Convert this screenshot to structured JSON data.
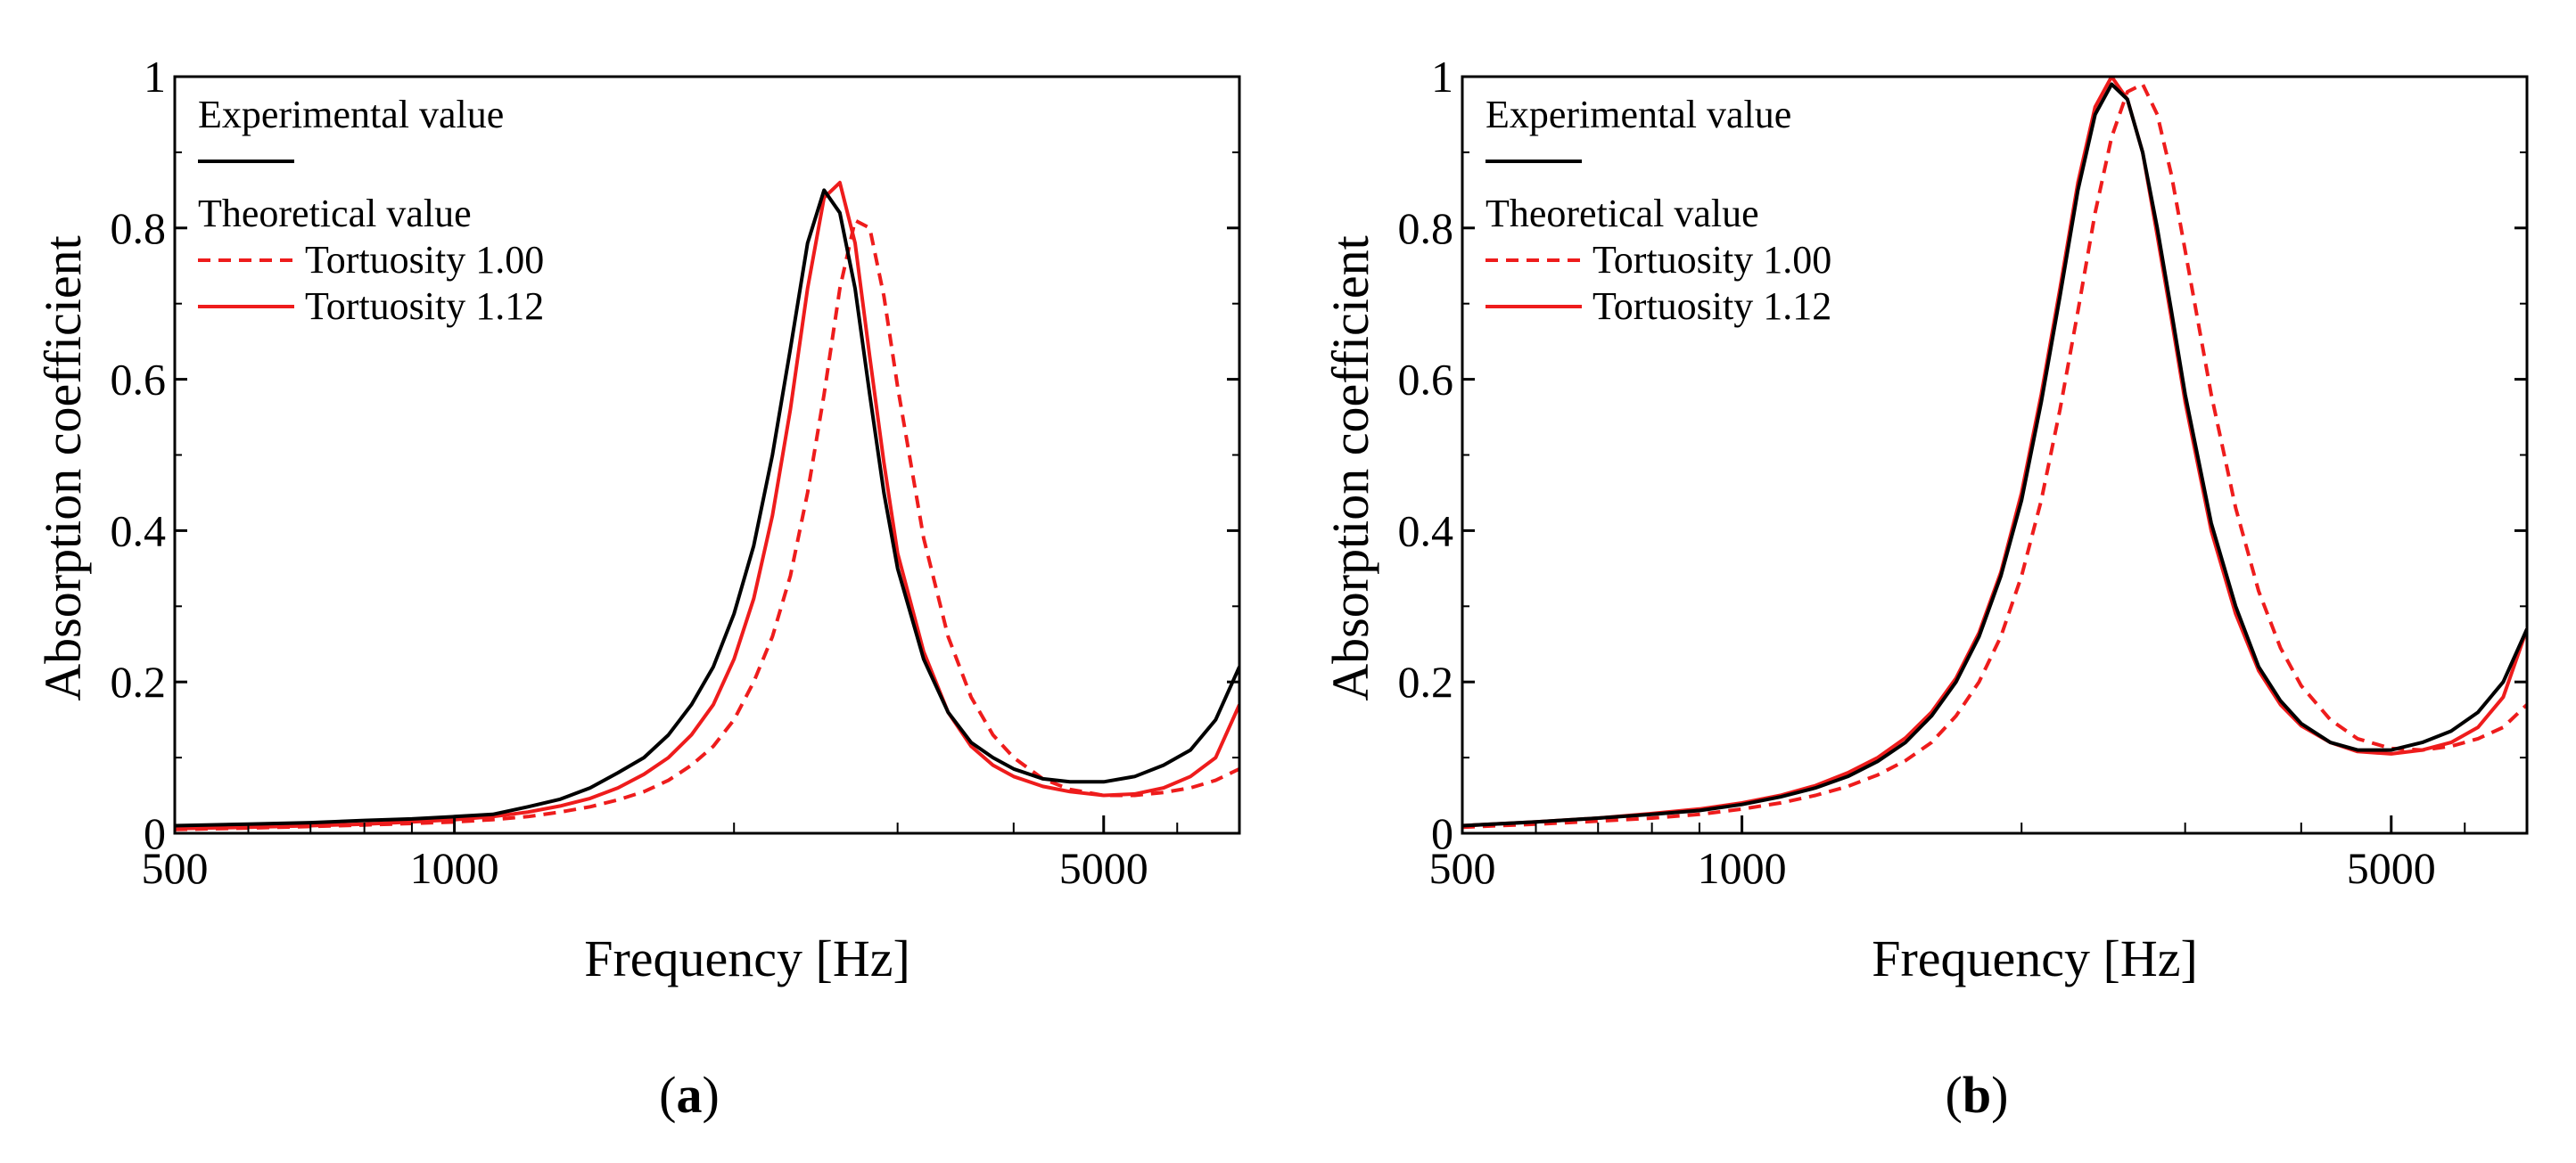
{
  "colors": {
    "experimental": "#000000",
    "theoretical": "#ee1c1c"
  },
  "chart_data": [
    {
      "type": "line",
      "panel_label": "a",
      "xlabel": "Frequency [Hz]",
      "ylabel": "Absorption coefficient",
      "xscale": "log",
      "xlim": [
        500,
        7000
      ],
      "ylim": [
        0,
        1
      ],
      "xticks": [
        500,
        1000,
        5000
      ],
      "xtick_labels": [
        "500",
        "1000",
        "5000"
      ],
      "yticks": [
        0,
        0.2,
        0.4,
        0.6,
        0.8,
        1
      ],
      "ytick_labels": [
        "0",
        "0.2",
        "0.4",
        "0.6",
        "0.8",
        "1"
      ],
      "legend": {
        "placement": "top-left",
        "group1": "Experimental value",
        "group2": "Theoretical value",
        "entry_dashed": "Tortuosity 1.00",
        "entry_solid": "Tortuosity 1.12"
      },
      "series": [
        {
          "name": "Experimental value",
          "style": "solid",
          "color": "#000000",
          "x": [
            500,
            600,
            700,
            800,
            900,
            1000,
            1100,
            1200,
            1300,
            1400,
            1500,
            1600,
            1700,
            1800,
            1900,
            2000,
            2100,
            2200,
            2300,
            2400,
            2500,
            2600,
            2700,
            2800,
            2900,
            3000,
            3200,
            3400,
            3600,
            3800,
            4000,
            4300,
            4600,
            5000,
            5400,
            5800,
            6200,
            6600,
            7000
          ],
          "y": [
            0.01,
            0.012,
            0.014,
            0.017,
            0.019,
            0.022,
            0.025,
            0.035,
            0.045,
            0.06,
            0.08,
            0.1,
            0.13,
            0.17,
            0.22,
            0.29,
            0.38,
            0.5,
            0.64,
            0.78,
            0.85,
            0.82,
            0.72,
            0.58,
            0.45,
            0.35,
            0.23,
            0.16,
            0.12,
            0.1,
            0.085,
            0.072,
            0.068,
            0.068,
            0.075,
            0.09,
            0.11,
            0.15,
            0.22
          ]
        },
        {
          "name": "Tortuosity 1.00",
          "style": "dashed",
          "color": "#ee1c1c",
          "x": [
            500,
            600,
            700,
            800,
            900,
            1000,
            1100,
            1200,
            1300,
            1400,
            1500,
            1600,
            1700,
            1800,
            1900,
            2000,
            2100,
            2200,
            2300,
            2400,
            2500,
            2600,
            2700,
            2800,
            2900,
            3000,
            3200,
            3400,
            3600,
            3800,
            4000,
            4300,
            4600,
            5000,
            5400,
            5800,
            6200,
            6600,
            7000
          ],
          "y": [
            0.005,
            0.007,
            0.009,
            0.011,
            0.013,
            0.015,
            0.018,
            0.022,
            0.028,
            0.035,
            0.044,
            0.055,
            0.07,
            0.09,
            0.115,
            0.15,
            0.2,
            0.26,
            0.34,
            0.45,
            0.58,
            0.72,
            0.81,
            0.8,
            0.71,
            0.59,
            0.39,
            0.26,
            0.18,
            0.13,
            0.1,
            0.072,
            0.058,
            0.05,
            0.05,
            0.054,
            0.06,
            0.07,
            0.085
          ]
        },
        {
          "name": "Tortuosity 1.12",
          "style": "solid",
          "color": "#ee1c1c",
          "x": [
            500,
            600,
            700,
            800,
            900,
            1000,
            1100,
            1200,
            1300,
            1400,
            1500,
            1600,
            1700,
            1800,
            1900,
            2000,
            2100,
            2200,
            2300,
            2400,
            2500,
            2600,
            2700,
            2800,
            2900,
            3000,
            3200,
            3400,
            3600,
            3800,
            4000,
            4300,
            4600,
            5000,
            5400,
            5800,
            6200,
            6600,
            7000
          ],
          "y": [
            0.006,
            0.008,
            0.01,
            0.012,
            0.015,
            0.018,
            0.022,
            0.028,
            0.036,
            0.046,
            0.06,
            0.078,
            0.1,
            0.13,
            0.17,
            0.23,
            0.31,
            0.42,
            0.56,
            0.72,
            0.84,
            0.86,
            0.78,
            0.63,
            0.49,
            0.37,
            0.24,
            0.16,
            0.115,
            0.09,
            0.075,
            0.062,
            0.055,
            0.05,
            0.052,
            0.06,
            0.075,
            0.1,
            0.17
          ]
        }
      ]
    },
    {
      "type": "line",
      "panel_label": "b",
      "xlabel": "Frequency [Hz]",
      "ylabel": "Absorption coefficient",
      "xscale": "log",
      "xlim": [
        500,
        7000
      ],
      "ylim": [
        0,
        1
      ],
      "xticks": [
        500,
        1000,
        5000
      ],
      "xtick_labels": [
        "500",
        "1000",
        "5000"
      ],
      "yticks": [
        0,
        0.2,
        0.4,
        0.6,
        0.8,
        1
      ],
      "ytick_labels": [
        "0",
        "0.2",
        "0.4",
        "0.6",
        "0.8",
        "1"
      ],
      "legend": {
        "placement": "top-left",
        "group1": "Experimental value",
        "group2": "Theoretical value",
        "entry_dashed": "Tortuosity 1.00",
        "entry_solid": "Tortuosity 1.12"
      },
      "series": [
        {
          "name": "Experimental value",
          "style": "solid",
          "color": "#000000",
          "x": [
            500,
            600,
            700,
            800,
            900,
            1000,
            1100,
            1200,
            1300,
            1400,
            1500,
            1600,
            1700,
            1800,
            1900,
            2000,
            2100,
            2200,
            2300,
            2400,
            2500,
            2600,
            2700,
            2800,
            2900,
            3000,
            3200,
            3400,
            3600,
            3800,
            4000,
            4300,
            4600,
            5000,
            5400,
            5800,
            6200,
            6600,
            7000
          ],
          "y": [
            0.01,
            0.015,
            0.02,
            0.025,
            0.03,
            0.038,
            0.048,
            0.06,
            0.075,
            0.095,
            0.12,
            0.155,
            0.2,
            0.26,
            0.34,
            0.44,
            0.57,
            0.71,
            0.85,
            0.95,
            0.99,
            0.97,
            0.9,
            0.8,
            0.69,
            0.58,
            0.41,
            0.3,
            0.22,
            0.175,
            0.145,
            0.12,
            0.11,
            0.11,
            0.12,
            0.135,
            0.16,
            0.2,
            0.27
          ]
        },
        {
          "name": "Tortuosity 1.00",
          "style": "dashed",
          "color": "#ee1c1c",
          "x": [
            500,
            600,
            700,
            800,
            900,
            1000,
            1100,
            1200,
            1300,
            1400,
            1500,
            1600,
            1700,
            1800,
            1900,
            2000,
            2100,
            2200,
            2300,
            2400,
            2500,
            2600,
            2700,
            2800,
            2900,
            3000,
            3200,
            3400,
            3600,
            3800,
            4000,
            4300,
            4600,
            5000,
            5400,
            5800,
            6200,
            6600,
            7000
          ],
          "y": [
            0.008,
            0.012,
            0.016,
            0.02,
            0.025,
            0.032,
            0.04,
            0.05,
            0.062,
            0.077,
            0.096,
            0.12,
            0.155,
            0.2,
            0.26,
            0.34,
            0.44,
            0.56,
            0.69,
            0.82,
            0.92,
            0.98,
            0.99,
            0.95,
            0.87,
            0.77,
            0.58,
            0.43,
            0.32,
            0.245,
            0.195,
            0.15,
            0.125,
            0.112,
            0.11,
            0.115,
            0.125,
            0.14,
            0.17
          ]
        },
        {
          "name": "Tortuosity 1.12",
          "style": "solid",
          "color": "#ee1c1c",
          "x": [
            500,
            600,
            700,
            800,
            900,
            1000,
            1100,
            1200,
            1300,
            1400,
            1500,
            1600,
            1700,
            1800,
            1900,
            2000,
            2100,
            2200,
            2300,
            2400,
            2500,
            2600,
            2700,
            2800,
            2900,
            3000,
            3200,
            3400,
            3600,
            3800,
            4000,
            4300,
            4600,
            5000,
            5400,
            5800,
            6200,
            6600,
            7000
          ],
          "y": [
            0.01,
            0.015,
            0.02,
            0.026,
            0.032,
            0.04,
            0.05,
            0.063,
            0.08,
            0.1,
            0.126,
            0.16,
            0.205,
            0.265,
            0.345,
            0.45,
            0.58,
            0.72,
            0.86,
            0.96,
            1.0,
            0.97,
            0.9,
            0.79,
            0.68,
            0.57,
            0.4,
            0.29,
            0.215,
            0.17,
            0.142,
            0.12,
            0.108,
            0.105,
            0.11,
            0.12,
            0.14,
            0.18,
            0.27
          ]
        }
      ]
    }
  ]
}
